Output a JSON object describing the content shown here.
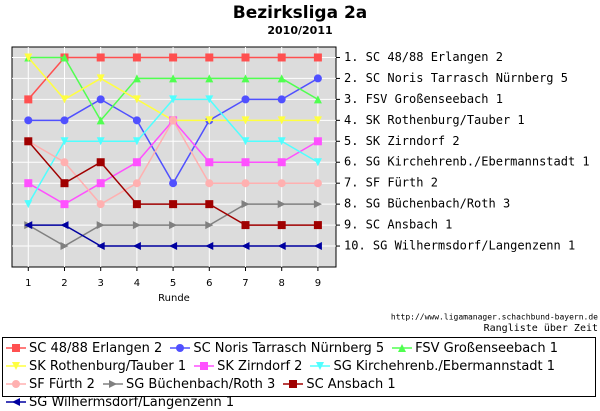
{
  "chart_data": {
    "type": "line",
    "title": "Bezirksliga 2a",
    "subtitle": "2010/2011",
    "xlabel": "Runde",
    "x": [
      1,
      2,
      3,
      4,
      5,
      6,
      7,
      8,
      9
    ],
    "xlim": [
      0.55,
      9.5
    ],
    "xticks": [
      1,
      2,
      3,
      4,
      5,
      6,
      7,
      8,
      9
    ],
    "ylim": [
      0.5,
      11
    ],
    "y_inverted": true,
    "yticks": [
      {
        "value": 1,
        "label": "1. SC 48/88 Erlangen 2"
      },
      {
        "value": 2,
        "label": "2. SC Noris Tarrasch Nürnberg 5"
      },
      {
        "value": 3,
        "label": "3. FSV Großenseebach 1"
      },
      {
        "value": 4,
        "label": "4. SK Rothenburg/Tauber 1"
      },
      {
        "value": 5,
        "label": "5. SK Zirndorf 2"
      },
      {
        "value": 6,
        "label": "6. SG Kirchehrenb./Ebermannstadt 1"
      },
      {
        "value": 7,
        "label": "7. SF Fürth 2"
      },
      {
        "value": 8,
        "label": "8. SG Büchenbach/Roth 3"
      },
      {
        "value": 9,
        "label": "9. SC Ansbach 1"
      },
      {
        "value": 10,
        "label": "10. SG Wilhermsdorf/Langenzenn 1"
      }
    ],
    "grid": true,
    "footer_url": "http://www.ligamanager.schachbund-bayern.de",
    "footer_text": "Rangliste über Zeit",
    "series": [
      {
        "name": "SC 48/88 Erlangen 2",
        "color": "#ff5050",
        "marker": "square",
        "values": [
          3,
          1,
          1,
          1,
          1,
          1,
          1,
          1,
          1
        ]
      },
      {
        "name": "SC Noris Tarrasch Nürnberg 5",
        "color": "#5050ff",
        "marker": "circle",
        "values": [
          4,
          4,
          3,
          4,
          7,
          4,
          3,
          3,
          2
        ]
      },
      {
        "name": "FSV Großenseebach 1",
        "color": "#50ff50",
        "marker": "triangle-up",
        "values": [
          1,
          1,
          4,
          2,
          2,
          2,
          2,
          2,
          3
        ]
      },
      {
        "name": "SK Rothenburg/Tauber 1",
        "color": "#ffff40",
        "marker": "triangle-down",
        "values": [
          1,
          3,
          2,
          3,
          4,
          4,
          4,
          4,
          4
        ]
      },
      {
        "name": "SK Zirndorf 2",
        "color": "#ff50ff",
        "marker": "square",
        "values": [
          7,
          8,
          7,
          6,
          4,
          6,
          6,
          6,
          5
        ]
      },
      {
        "name": "SG Kirchehrenb./Ebermannstadt 1",
        "color": "#50ffff",
        "marker": "triangle-down",
        "values": [
          8,
          5,
          5,
          5,
          3,
          3,
          5,
          5,
          6
        ]
      },
      {
        "name": "SF Fürth 2",
        "color": "#ffb0b0",
        "marker": "circle",
        "values": [
          5,
          6,
          8,
          7,
          4,
          7,
          7,
          7,
          7
        ]
      },
      {
        "name": "SG Büchenbach/Roth 3",
        "color": "#808080",
        "marker": "triangle-right",
        "values": [
          9,
          10,
          9,
          9,
          9,
          9,
          8,
          8,
          8
        ]
      },
      {
        "name": "SC Ansbach 1",
        "color": "#a00000",
        "marker": "square",
        "values": [
          5,
          7,
          6,
          8,
          8,
          8,
          9,
          9,
          9
        ]
      },
      {
        "name": "SG Wilhermsdorf/Langenzenn 1",
        "color": "#0000a0",
        "marker": "triangle-left",
        "values": [
          9,
          9,
          10,
          10,
          10,
          10,
          10,
          10,
          10
        ]
      }
    ]
  }
}
